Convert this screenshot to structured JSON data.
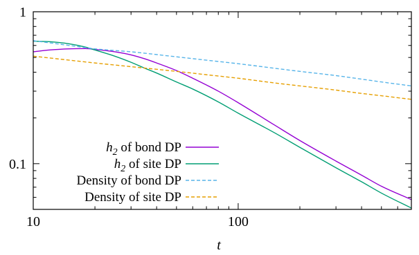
{
  "chart_data": {
    "type": "line",
    "title": "",
    "xlabel": "t",
    "ylabel": "",
    "xscale": "log",
    "yscale": "log",
    "xlim": [
      10,
      700
    ],
    "ylim": [
      0.05,
      1
    ],
    "grid": false,
    "legend_position": "lower-left",
    "x_ticks": [
      {
        "value": 10,
        "label": "10"
      },
      {
        "value": 100,
        "label": "100"
      }
    ],
    "y_ticks": [
      {
        "value": 0.1,
        "label": "0.1"
      },
      {
        "value": 1,
        "label": "1"
      }
    ],
    "series": [
      {
        "name_math": "h",
        "name_sub": "2",
        "name_rest": " of bond DP",
        "color": "#9400d3",
        "dash": "solid",
        "x": [
          10,
          12,
          15,
          18,
          20,
          25,
          30,
          35,
          40,
          50,
          60,
          80,
          100,
          150,
          200,
          300,
          400,
          500,
          700
        ],
        "values": [
          0.545,
          0.56,
          0.57,
          0.572,
          0.565,
          0.545,
          0.52,
          0.49,
          0.46,
          0.41,
          0.365,
          0.3,
          0.252,
          0.18,
          0.142,
          0.104,
          0.084,
          0.071,
          0.058
        ]
      },
      {
        "name_math": "h",
        "name_sub": "2",
        "name_rest": " of site DP",
        "color": "#009e73",
        "dash": "solid",
        "x": [
          10,
          12,
          15,
          18,
          20,
          25,
          30,
          35,
          40,
          50,
          60,
          80,
          100,
          150,
          200,
          300,
          400,
          500,
          700
        ],
        "values": [
          0.64,
          0.635,
          0.615,
          0.585,
          0.56,
          0.51,
          0.465,
          0.425,
          0.395,
          0.345,
          0.31,
          0.255,
          0.215,
          0.16,
          0.128,
          0.094,
          0.076,
          0.064,
          0.051
        ]
      },
      {
        "name_math": "",
        "name_sub": "",
        "name_rest": "Density of bond DP",
        "color": "#56b4e9",
        "dash": "dashed",
        "x": [
          10,
          15,
          20,
          30,
          50,
          70,
          100,
          150,
          200,
          300,
          400,
          500,
          700
        ],
        "values": [
          0.645,
          0.6,
          0.57,
          0.545,
          0.505,
          0.48,
          0.455,
          0.425,
          0.405,
          0.38,
          0.36,
          0.345,
          0.325
        ]
      },
      {
        "name_math": "",
        "name_sub": "",
        "name_rest": "Density of site DP",
        "color": "#e69f00",
        "dash": "dashed",
        "x": [
          10,
          15,
          20,
          30,
          50,
          70,
          100,
          150,
          200,
          300,
          400,
          500,
          700
        ],
        "values": [
          0.51,
          0.48,
          0.46,
          0.435,
          0.405,
          0.385,
          0.365,
          0.34,
          0.325,
          0.305,
          0.29,
          0.28,
          0.265
        ]
      }
    ]
  }
}
